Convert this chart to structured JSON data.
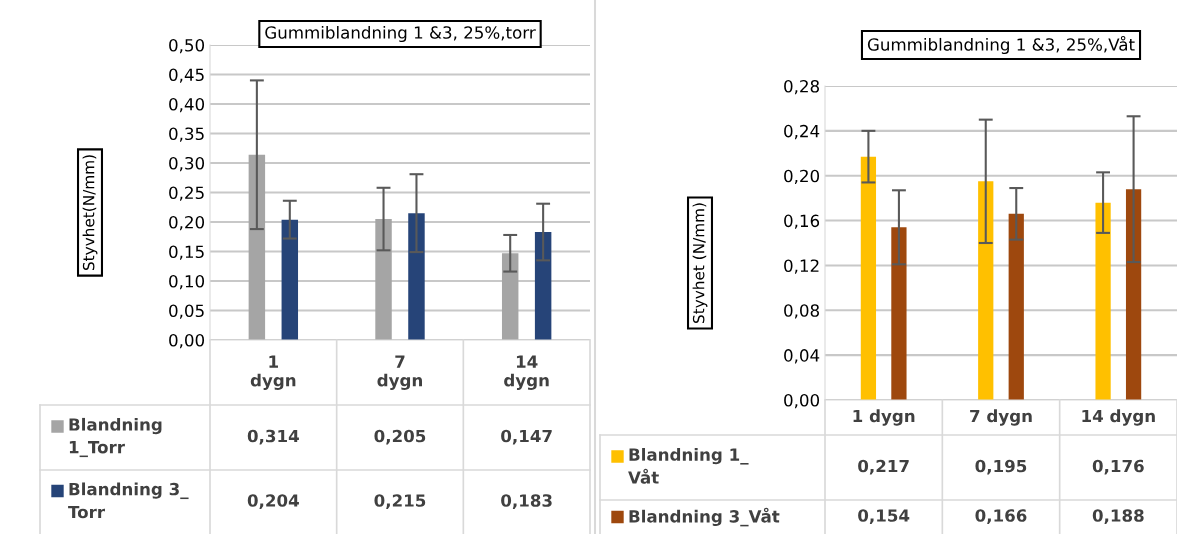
{
  "chart_data": [
    {
      "type": "bar",
      "title": "Gummiblandning 1 &3, 25%,torr",
      "ylabel": "Styvhet(N/mm)",
      "categories": [
        "1\ndygn",
        "7\ndygn",
        "14\ndygn"
      ],
      "series": [
        {
          "name": "Blandning\n1_Torr",
          "color": "#a5a5a5",
          "values": [
            0.314,
            0.205,
            0.147
          ],
          "value_labels": [
            "0,314",
            "0,205",
            "0,147"
          ],
          "errors": [
            0.126,
            0.053,
            0.031
          ]
        },
        {
          "name": "Blandning 3_\nTorr",
          "color": "#264478",
          "values": [
            0.204,
            0.215,
            0.183
          ],
          "value_labels": [
            "0,204",
            "0,215",
            "0,183"
          ],
          "errors": [
            0.032,
            0.066,
            0.048
          ]
        }
      ],
      "ylim": [
        0,
        0.5
      ],
      "yticks": [
        {
          "value": 0,
          "label": "0,00"
        },
        {
          "value": 0.05,
          "label": "0,05"
        },
        {
          "value": 0.1,
          "label": "0,10"
        },
        {
          "value": 0.15,
          "label": "0,15"
        },
        {
          "value": 0.2,
          "label": "0,20"
        },
        {
          "value": 0.25,
          "label": "0,25"
        },
        {
          "value": 0.3,
          "label": "0,30"
        },
        {
          "value": 0.35,
          "label": "0,35"
        },
        {
          "value": 0.4,
          "label": "0,40"
        },
        {
          "value": 0.45,
          "label": "0,45"
        },
        {
          "value": 0.5,
          "label": "0,50"
        }
      ],
      "grid": "y",
      "legend": "bottom"
    },
    {
      "type": "bar",
      "title": "Gummiblandning 1 &3, 25%,Våt",
      "ylabel": "Styvhet (N/mm)",
      "categories": [
        "1 dygn",
        "7 dygn",
        "14 dygn"
      ],
      "series": [
        {
          "name": "Blandning 1_\nVåt",
          "color": "#ffc000",
          "values": [
            0.217,
            0.195,
            0.176
          ],
          "value_labels": [
            "0,217",
            "0,195",
            "0,176"
          ],
          "errors": [
            0.023,
            0.055,
            0.027
          ]
        },
        {
          "name": "Blandning 3_Våt",
          "color": "#9e480e",
          "values": [
            0.154,
            0.166,
            0.188
          ],
          "value_labels": [
            "0,154",
            "0,166",
            "0,188"
          ],
          "errors": [
            0.033,
            0.023,
            0.065
          ]
        }
      ],
      "ylim": [
        0,
        0.28
      ],
      "yticks": [
        {
          "value": 0,
          "label": "0,00"
        },
        {
          "value": 0.04,
          "label": "0,04"
        },
        {
          "value": 0.08,
          "label": "0,08"
        },
        {
          "value": 0.12,
          "label": "0,12"
        },
        {
          "value": 0.16,
          "label": "0,16"
        },
        {
          "value": 0.2,
          "label": "0,20"
        },
        {
          "value": 0.24,
          "label": "0,24"
        },
        {
          "value": 0.28,
          "label": "0,28"
        }
      ],
      "grid": "y",
      "legend": "bottom"
    }
  ]
}
